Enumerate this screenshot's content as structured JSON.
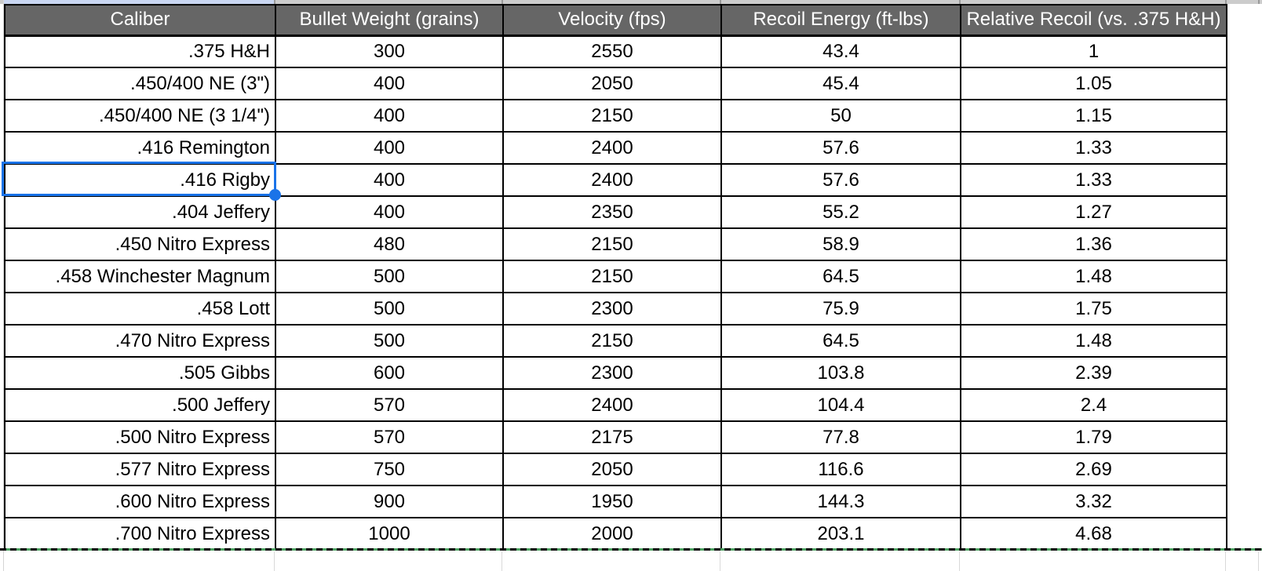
{
  "sheet": {
    "columns": [
      {
        "label": "Caliber"
      },
      {
        "label": "Bullet Weight (grains)"
      },
      {
        "label": "Velocity (fps)"
      },
      {
        "label": "Recoil Energy (ft-lbs)"
      },
      {
        "label": "Relative Recoil (vs. .375 H&H)"
      }
    ],
    "rows": [
      [
        ".375 H&H",
        "300",
        "2550",
        "43.4",
        "1"
      ],
      [
        ".450/400 NE (3\")",
        "400",
        "2050",
        "45.4",
        "1.05"
      ],
      [
        ".450/400 NE (3 1/4\")",
        "400",
        "2150",
        "50",
        "1.15"
      ],
      [
        ".416 Remington",
        "400",
        "2400",
        "57.6",
        "1.33"
      ],
      [
        ".416 Rigby",
        "400",
        "2400",
        "57.6",
        "1.33"
      ],
      [
        ".404 Jeffery",
        "400",
        "2350",
        "55.2",
        "1.27"
      ],
      [
        ".450 Nitro Express",
        "480",
        "2150",
        "58.9",
        "1.36"
      ],
      [
        ".458 Winchester Magnum",
        "500",
        "2150",
        "64.5",
        "1.48"
      ],
      [
        ".458 Lott",
        "500",
        "2300",
        "75.9",
        "1.75"
      ],
      [
        ".470 Nitro Express",
        "500",
        "2150",
        "64.5",
        "1.48"
      ],
      [
        ".505 Gibbs",
        "600",
        "2300",
        "103.8",
        "2.39"
      ],
      [
        ".500 Jeffery",
        "570",
        "2400",
        "104.4",
        "2.4"
      ],
      [
        ".500 Nitro Express",
        "570",
        "2175",
        "77.8",
        "1.79"
      ],
      [
        ".577 Nitro Express",
        "750",
        "2050",
        "116.6",
        "2.69"
      ],
      [
        ".600 Nitro Express",
        "900",
        "1950",
        "144.3",
        "3.32"
      ],
      [
        ".700 Nitro Express",
        "1000",
        "2000",
        "203.1",
        "4.68"
      ]
    ],
    "selection": {
      "row_index": 4,
      "col_index": 0,
      "value": ".416 Rigby"
    },
    "colors": {
      "header_bg": "#666666",
      "header_text": "#ffffff",
      "grid_border": "#000000",
      "selection_blue": "#1a73e8",
      "column_header_highlight": "#c9d6f1",
      "column_header_strip": "#cccccc",
      "range_boundary_green": "#4fa363",
      "faint_gridline": "#d9d9d9"
    }
  }
}
